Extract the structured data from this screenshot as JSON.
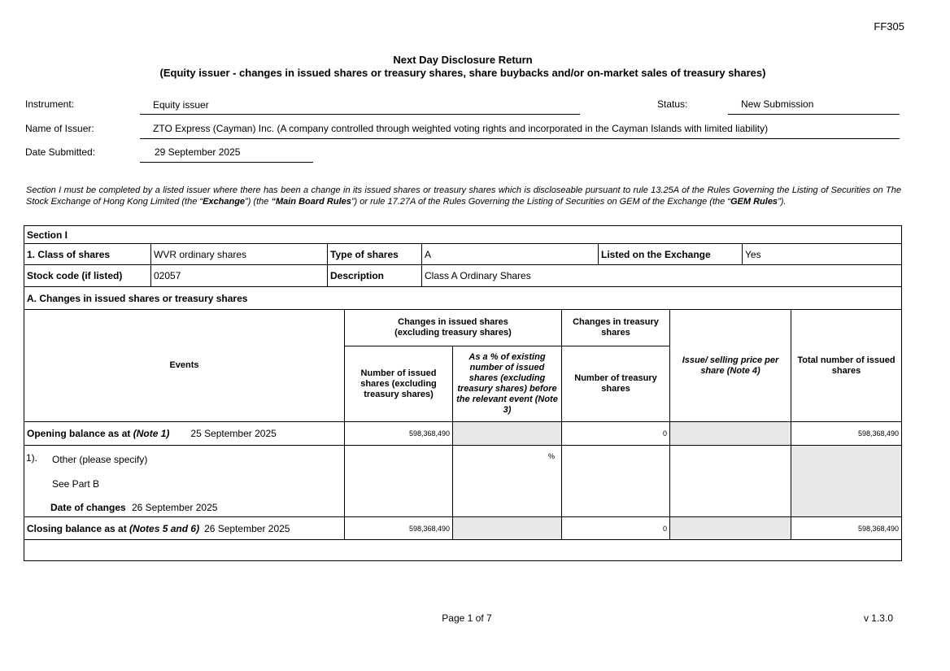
{
  "form_code": "FF305",
  "title": "Next Day Disclosure Return",
  "subtitle": "(Equity issuer - changes in issued shares or treasury shares, share buybacks and/or on-market sales of treasury shares)",
  "header": {
    "instrument_label": "Instrument:",
    "instrument": "Equity issuer",
    "status_label": "Status:",
    "status": "New Submission",
    "issuer_label": "Name of Issuer:",
    "issuer": "ZTO Express (Cayman) Inc. (A company controlled through weighted voting rights and incorporated in the Cayman Islands with limited liability)",
    "date_label": "Date Submitted:",
    "date": "29 September 2025"
  },
  "intro": {
    "p1": "Section I must be completed by a listed issuer where there has been a change in its issued shares or treasury shares which is discloseable pursuant to rule 13.25A of the Rules Governing the Listing of Securities on The Stock Exchange of Hong Kong Limited (the “",
    "exchange": "Exchange",
    "p2": "”) (the ",
    "mbr": "“Main Board Rules",
    "p3": "”) or rule 17.27A of the Rules Governing the Listing of Securities on GEM of the Exchange (the “",
    "gem": "GEM Rules",
    "p4": "”)."
  },
  "section": {
    "title": "Section I",
    "class_label": "1. Class of shares",
    "class": "WVR ordinary shares",
    "type_label": "Type of shares",
    "type": "A",
    "listed_label": "Listed on the Exchange",
    "listed": "Yes",
    "code_label": "Stock code (if listed)",
    "code": "02057",
    "desc_label": "Description",
    "desc": "Class A Ordinary Shares",
    "partA": "A. Changes in issued shares or treasury shares"
  },
  "table": {
    "events": "Events",
    "grp_issued": "Changes in issued shares (excluding treasury shares)",
    "grp_treasury": "Changes in treasury shares",
    "col_issued": "Number of issued shares (excluding treasury shares)",
    "col_pct": "As a % of existing number of issued shares (excluding treasury shares) before the relevant event (Note 3)",
    "col_treasury": "Number of treasury shares",
    "col_price": "Issue/ selling price per share (Note 4)",
    "col_total": "Total number of issued shares",
    "opening": {
      "label": "Opening balance as at ",
      "note": "(Note 1)",
      "date": "25 September 2025",
      "issued": "598,368,490",
      "treasury": "0",
      "total": "598,368,490"
    },
    "event": {
      "num": "1).",
      "type": "Other (please specify)",
      "spec": "See Part B",
      "date_label": "Date of changes",
      "date": "26 September 2025",
      "pct": "%"
    },
    "closing": {
      "label": "Closing balance as at ",
      "note": "(Notes 5 and 6)",
      "date": "26 September 2025",
      "issued": "598,368,490",
      "treasury": "0",
      "total": "598,368,490"
    }
  },
  "footer": {
    "page": "Page 1 of 7",
    "version": "v 1.3.0"
  }
}
